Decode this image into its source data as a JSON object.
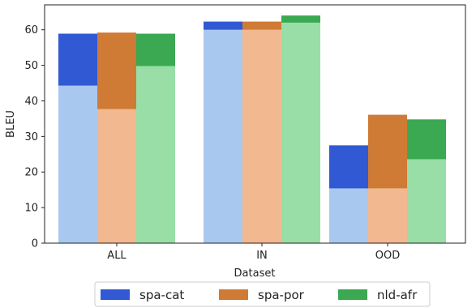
{
  "chart_data": {
    "type": "bar",
    "stacked_overlay": true,
    "categories": [
      "ALL",
      "IN",
      "OOD"
    ],
    "xlabel": "Dataset",
    "ylabel": "BLEU",
    "ylim": [
      0,
      67
    ],
    "yticks": [
      0,
      10,
      20,
      30,
      40,
      50,
      60
    ],
    "grid": false,
    "legend_position": "bottom-center",
    "series": [
      {
        "name": "spa-cat",
        "base_values": [
          44.3,
          60.0,
          15.4
        ],
        "total_values": [
          58.9,
          62.3,
          27.5
        ],
        "color": "#3159d4",
        "base_color": "#a9c8ef"
      },
      {
        "name": "spa-por",
        "base_values": [
          37.7,
          60.0,
          15.4
        ],
        "total_values": [
          59.2,
          62.3,
          36.1
        ],
        "color": "#cf7a35",
        "base_color": "#f2b88f"
      },
      {
        "name": "nld-afr",
        "base_values": [
          49.8,
          62.0,
          23.6
        ],
        "total_values": [
          58.9,
          64.0,
          34.8
        ],
        "color": "#3ba852",
        "base_color": "#98dea6"
      }
    ]
  }
}
